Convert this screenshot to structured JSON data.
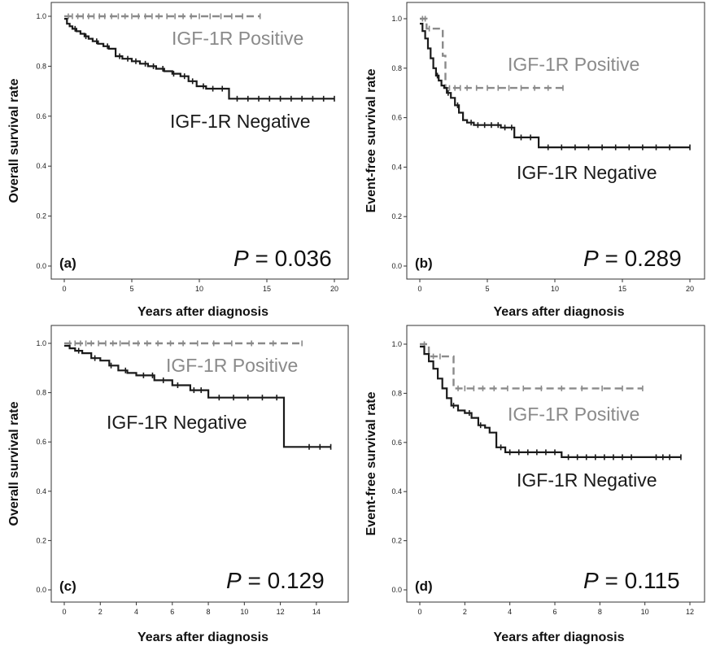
{
  "chart_data": [
    {
      "type": "line",
      "panel_label": "(a)",
      "xlabel": "Years after diagnosis",
      "ylabel": "Overall survival rate",
      "xlim": [
        0,
        20
      ],
      "ylim": [
        0,
        1
      ],
      "xticks": [
        "0",
        "5",
        "10",
        "15",
        "20"
      ],
      "yticks": [
        "0.0",
        "0.2",
        "0.4",
        "0.6",
        "0.8",
        "1.0"
      ],
      "p_value": "0.036",
      "colors": {
        "positive": "#8a8a8a",
        "negative": "#1a1a1a"
      },
      "series": [
        {
          "name": "IGF-1R Positive",
          "line_style": "dashed",
          "x": [
            0,
            14.5
          ],
          "y": [
            1.0,
            1.0
          ],
          "censor_x": [
            0.3,
            0.6,
            1.0,
            1.4,
            1.8,
            2.2,
            2.6,
            3.0,
            3.5,
            4.0,
            4.5,
            5.0,
            5.5,
            6.0,
            6.5,
            7.0,
            7.6,
            8.2,
            8.8,
            9.4,
            10.0,
            10.8,
            11.6,
            12.4,
            13.2,
            14.5
          ]
        },
        {
          "name": "IGF-1R Negative",
          "line_style": "solid",
          "x": [
            0,
            0.2,
            0.4,
            0.6,
            0.9,
            1.2,
            1.5,
            1.8,
            2.1,
            2.5,
            2.9,
            3.3,
            3.8,
            4.3,
            5.0,
            5.6,
            6.2,
            6.8,
            7.4,
            8.0,
            8.6,
            9.2,
            9.8,
            10.5,
            11.2,
            12.2,
            20.0
          ],
          "y": [
            0.99,
            0.97,
            0.96,
            0.95,
            0.94,
            0.93,
            0.92,
            0.91,
            0.9,
            0.89,
            0.88,
            0.87,
            0.84,
            0.83,
            0.82,
            0.81,
            0.8,
            0.79,
            0.78,
            0.77,
            0.76,
            0.74,
            0.72,
            0.71,
            0.71,
            0.67,
            0.67
          ],
          "censor_x": [
            0.8,
            1.6,
            2.4,
            3.2,
            4.1,
            4.7,
            5.3,
            6.0,
            6.6,
            7.3,
            8.1,
            8.9,
            9.5,
            10.3,
            11.0,
            11.7,
            12.8,
            13.6,
            14.4,
            15.2,
            16.0,
            16.8,
            17.6,
            18.4,
            19.2,
            20.0
          ]
        }
      ]
    },
    {
      "type": "line",
      "panel_label": "(b)",
      "xlabel": "Years after diagnosis",
      "ylabel": "Event-free survival rate",
      "xlim": [
        0,
        20
      ],
      "ylim": [
        0,
        1
      ],
      "xticks": [
        "0",
        "5",
        "10",
        "15",
        "20"
      ],
      "yticks": [
        "0.0",
        "0.2",
        "0.4",
        "0.6",
        "0.8",
        "1.0"
      ],
      "p_value": "0.289",
      "colors": {
        "positive": "#8a8a8a",
        "negative": "#1a1a1a"
      },
      "series": [
        {
          "name": "IGF-1R Positive",
          "line_style": "dashed",
          "x": [
            0,
            0.5,
            1.0,
            1.7,
            1.9,
            10.6
          ],
          "y": [
            1.0,
            0.96,
            0.96,
            0.85,
            0.72,
            0.72
          ],
          "censor_x": [
            0.2,
            0.4,
            0.7,
            2.2,
            2.6,
            3.0,
            3.5,
            4.2,
            5.0,
            5.8,
            6.6,
            7.5,
            8.5,
            9.5,
            10.6
          ]
        },
        {
          "name": "IGF-1R Negative",
          "line_style": "solid",
          "x": [
            0,
            0.2,
            0.4,
            0.6,
            0.8,
            1.0,
            1.2,
            1.4,
            1.6,
            1.8,
            2.0,
            2.3,
            2.6,
            2.9,
            3.2,
            3.5,
            4.0,
            5.0,
            6.0,
            7.0,
            8.0,
            8.8,
            20.0
          ],
          "y": [
            0.98,
            0.95,
            0.92,
            0.88,
            0.84,
            0.8,
            0.77,
            0.75,
            0.73,
            0.72,
            0.7,
            0.68,
            0.65,
            0.62,
            0.59,
            0.58,
            0.57,
            0.57,
            0.56,
            0.52,
            0.52,
            0.48,
            0.48
          ],
          "censor_x": [
            1.3,
            2.1,
            2.8,
            3.8,
            4.3,
            4.8,
            5.3,
            5.8,
            6.3,
            6.8,
            7.5,
            8.2,
            9.5,
            10.5,
            11.5,
            12.5,
            13.5,
            14.5,
            15.5,
            16.5,
            17.5,
            18.5,
            20.0
          ]
        }
      ]
    },
    {
      "type": "line",
      "panel_label": "(c)",
      "xlabel": "Years after diagnosis",
      "ylabel": "Overall survival rate",
      "xlim": [
        0,
        15
      ],
      "ylim": [
        0,
        1
      ],
      "xticks": [
        "0",
        "2",
        "4",
        "6",
        "8",
        "10",
        "12",
        "14"
      ],
      "yticks": [
        "0.0",
        "0.2",
        "0.4",
        "0.6",
        "0.8",
        "1.0"
      ],
      "p_value": "0.129",
      "colors": {
        "positive": "#8a8a8a",
        "negative": "#1a1a1a"
      },
      "series": [
        {
          "name": "IGF-1R Positive",
          "line_style": "dashed",
          "x": [
            0,
            13.2
          ],
          "y": [
            1.0,
            1.0
          ],
          "censor_x": [
            0.3,
            0.6,
            0.9,
            1.2,
            1.5,
            1.9,
            2.3,
            2.7,
            3.1,
            3.6,
            4.1,
            4.6,
            5.2,
            5.9,
            6.6,
            7.4,
            8.3,
            9.3,
            10.4,
            11.6,
            13.2
          ]
        },
        {
          "name": "IGF-1R Negative",
          "line_style": "solid",
          "x": [
            0,
            0.3,
            0.6,
            1.0,
            1.5,
            2.0,
            2.5,
            3.0,
            3.5,
            4.0,
            5.0,
            6.0,
            7.0,
            8.0,
            9.0,
            12.2,
            14.8
          ],
          "y": [
            0.99,
            0.98,
            0.97,
            0.96,
            0.94,
            0.93,
            0.91,
            0.89,
            0.88,
            0.87,
            0.85,
            0.83,
            0.81,
            0.78,
            0.78,
            0.58,
            0.58
          ],
          "censor_x": [
            0.8,
            1.7,
            2.6,
            3.4,
            4.4,
            4.9,
            5.5,
            6.3,
            7.2,
            7.6,
            8.6,
            9.4,
            10.2,
            11.0,
            11.8,
            13.6,
            14.2,
            14.8
          ]
        }
      ]
    },
    {
      "type": "line",
      "panel_label": "(d)",
      "xlabel": "Years after diagnosis",
      "ylabel": "Event-free survival rate",
      "xlim": [
        0,
        12
      ],
      "ylim": [
        0,
        1
      ],
      "xticks": [
        "0",
        "2",
        "4",
        "6",
        "8",
        "10",
        "12"
      ],
      "yticks": [
        "0.0",
        "0.2",
        "0.4",
        "0.6",
        "0.8",
        "1.0"
      ],
      "p_value": "0.115",
      "colors": {
        "positive": "#8a8a8a",
        "negative": "#1a1a1a"
      },
      "series": [
        {
          "name": "IGF-1R Positive",
          "line_style": "dashed",
          "x": [
            0,
            0.4,
            1.3,
            1.5,
            9.9
          ],
          "y": [
            1.0,
            0.95,
            0.95,
            0.82,
            0.82
          ],
          "censor_x": [
            0.2,
            0.6,
            0.9,
            1.7,
            2.0,
            2.4,
            2.8,
            3.3,
            3.9,
            4.6,
            5.4,
            6.3,
            7.2,
            8.1,
            9.0,
            9.9
          ]
        },
        {
          "name": "IGF-1R Negative",
          "line_style": "solid",
          "x": [
            0,
            0.2,
            0.4,
            0.6,
            0.8,
            1.0,
            1.2,
            1.4,
            1.7,
            2.0,
            2.3,
            2.6,
            2.9,
            3.1,
            3.4,
            3.8,
            4.5,
            5.5,
            6.3,
            11.6
          ],
          "y": [
            0.99,
            0.96,
            0.93,
            0.9,
            0.86,
            0.82,
            0.78,
            0.75,
            0.73,
            0.72,
            0.7,
            0.67,
            0.66,
            0.64,
            0.58,
            0.56,
            0.56,
            0.56,
            0.54,
            0.54
          ],
          "censor_x": [
            1.5,
            2.2,
            2.7,
            3.6,
            4.0,
            4.4,
            4.8,
            5.2,
            5.6,
            6.0,
            6.6,
            7.0,
            7.4,
            7.8,
            8.2,
            8.6,
            9.0,
            9.4,
            10.5,
            10.8,
            11.1,
            11.6
          ]
        }
      ]
    }
  ]
}
